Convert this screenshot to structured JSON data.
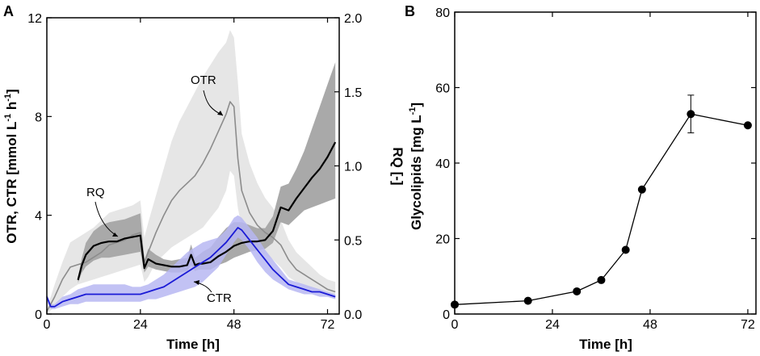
{
  "colors": {
    "otr_line": "#8c8c8c",
    "otr_band": "#e6e6e6",
    "rq_line": "#000000",
    "rq_band": "#a9a9a9",
    "ctr_line": "#1a1ad6",
    "ctr_band": "#b7b7f2",
    "glyco_marker": "#000000"
  },
  "chart_data": [
    {
      "panel": "A",
      "type": "line",
      "title": "",
      "xlabel": "Time [h]",
      "ylabel_left": "OTR, CTR [mmol L⁻¹ h⁻¹]",
      "ylabel_left_parts": {
        "base": "OTR, CTR [mmol L",
        "exp1": "-1",
        "mid": " h",
        "exp2": "-1",
        "end": "]"
      },
      "ylabel_right": "RQ [-]",
      "xlim": [
        0,
        75
      ],
      "ylim_left": [
        0,
        12
      ],
      "ylim_right": [
        0,
        2.0
      ],
      "xticks": [
        "0",
        "24",
        "48",
        "72"
      ],
      "yticks_left": [
        "0",
        "4",
        "8",
        "12"
      ],
      "yticks_right": [
        "0.0",
        "0.5",
        "1.0",
        "1.5",
        "2.0"
      ],
      "annotations": [
        "OTR",
        "RQ",
        "CTR"
      ],
      "series": [
        {
          "name": "OTR",
          "axis": "left",
          "x": [
            0,
            2,
            4,
            6,
            8,
            10,
            12,
            14,
            16,
            18,
            20,
            22,
            24,
            25,
            26,
            28,
            30,
            32,
            34,
            36,
            38,
            40,
            42,
            44,
            46,
            47,
            48,
            49,
            50,
            52,
            54,
            56,
            58,
            60,
            62,
            64,
            66,
            68,
            70,
            72,
            74
          ],
          "values": [
            0.1,
            0.7,
            1.4,
            1.9,
            2.0,
            2.1,
            2.3,
            2.5,
            2.8,
            2.9,
            3.0,
            3.2,
            3.3,
            2.1,
            2.5,
            3.3,
            4.0,
            4.6,
            5.0,
            5.3,
            5.6,
            6.1,
            6.7,
            7.4,
            8.1,
            8.6,
            8.4,
            6.3,
            5.0,
            4.1,
            3.6,
            3.3,
            3.1,
            2.8,
            2.2,
            1.8,
            1.6,
            1.4,
            1.2,
            1.0,
            0.9
          ],
          "band": [
            [
              0,
              0.2
            ],
            [
              0.3,
              1.2
            ],
            [
              0.7,
              2.1
            ],
            [
              1.0,
              2.9
            ],
            [
              1.2,
              3.1
            ],
            [
              1.3,
              3.3
            ],
            [
              1.4,
              3.5
            ],
            [
              1.5,
              3.8
            ],
            [
              1.6,
              4.1
            ],
            [
              1.7,
              4.2
            ],
            [
              1.8,
              4.3
            ],
            [
              1.9,
              4.4
            ],
            [
              2.0,
              4.6
            ],
            [
              1.3,
              3.1
            ],
            [
              1.5,
              3.7
            ],
            [
              2.1,
              4.8
            ],
            [
              2.4,
              5.9
            ],
            [
              2.7,
              7.0
            ],
            [
              2.9,
              7.8
            ],
            [
              3.1,
              8.4
            ],
            [
              3.3,
              9.0
            ],
            [
              3.5,
              9.6
            ],
            [
              3.9,
              10.1
            ],
            [
              4.3,
              10.6
            ],
            [
              5.0,
              11.0
            ],
            [
              5.8,
              11.5
            ],
            [
              5.6,
              11.2
            ],
            [
              4.3,
              9.4
            ],
            [
              3.5,
              7.3
            ],
            [
              2.9,
              6.1
            ],
            [
              2.6,
              5.3
            ],
            [
              2.4,
              4.7
            ],
            [
              2.2,
              4.3
            ],
            [
              1.9,
              3.8
            ],
            [
              1.5,
              3.0
            ],
            [
              1.3,
              2.5
            ],
            [
              1.1,
              2.2
            ],
            [
              1.0,
              1.9
            ],
            [
              0.9,
              1.6
            ],
            [
              0.7,
              1.4
            ],
            [
              0.6,
              1.3
            ]
          ]
        },
        {
          "name": "RQ",
          "axis": "right",
          "x": [
            8,
            9,
            10,
            12,
            14,
            16,
            18,
            20,
            22,
            24,
            25,
            26,
            28,
            30,
            32,
            34,
            36,
            37,
            38,
            39,
            40,
            42,
            44,
            46,
            48,
            50,
            52,
            54,
            56,
            58,
            60,
            62,
            64,
            66,
            68,
            70,
            72,
            74
          ],
          "values": [
            0.23,
            0.33,
            0.4,
            0.46,
            0.48,
            0.49,
            0.49,
            0.51,
            0.52,
            0.53,
            0.31,
            0.37,
            0.34,
            0.33,
            0.32,
            0.32,
            0.33,
            0.4,
            0.33,
            0.34,
            0.34,
            0.35,
            0.39,
            0.42,
            0.46,
            0.48,
            0.49,
            0.49,
            0.5,
            0.56,
            0.72,
            0.7,
            0.78,
            0.85,
            0.92,
            0.98,
            1.06,
            1.16
          ],
          "band": [
            [
              0.21,
              0.25
            ],
            [
              0.28,
              0.38
            ],
            [
              0.32,
              0.48
            ],
            [
              0.36,
              0.56
            ],
            [
              0.38,
              0.6
            ],
            [
              0.38,
              0.62
            ],
            [
              0.39,
              0.63
            ],
            [
              0.4,
              0.64
            ],
            [
              0.41,
              0.66
            ],
            [
              0.42,
              0.68
            ],
            [
              0.28,
              0.36
            ],
            [
              0.32,
              0.44
            ],
            [
              0.3,
              0.4
            ],
            [
              0.29,
              0.37
            ],
            [
              0.28,
              0.36
            ],
            [
              0.28,
              0.37
            ],
            [
              0.29,
              0.38
            ],
            [
              0.33,
              0.47
            ],
            [
              0.29,
              0.38
            ],
            [
              0.3,
              0.4
            ],
            [
              0.3,
              0.42
            ],
            [
              0.3,
              0.45
            ],
            [
              0.33,
              0.52
            ],
            [
              0.35,
              0.58
            ],
            [
              0.38,
              0.62
            ],
            [
              0.4,
              0.62
            ],
            [
              0.42,
              0.6
            ],
            [
              0.43,
              0.58
            ],
            [
              0.44,
              0.58
            ],
            [
              0.48,
              0.66
            ],
            [
              0.62,
              0.86
            ],
            [
              0.6,
              0.88
            ],
            [
              0.65,
              0.98
            ],
            [
              0.7,
              1.1
            ],
            [
              0.72,
              1.25
            ],
            [
              0.74,
              1.4
            ],
            [
              0.76,
              1.55
            ],
            [
              0.78,
              1.7
            ]
          ]
        },
        {
          "name": "CTR",
          "axis": "left",
          "x": [
            0,
            1,
            2,
            4,
            6,
            8,
            10,
            12,
            14,
            16,
            18,
            20,
            22,
            24,
            26,
            28,
            30,
            32,
            34,
            36,
            38,
            40,
            42,
            44,
            46,
            48,
            49,
            50,
            52,
            54,
            56,
            58,
            60,
            62,
            64,
            66,
            68,
            70,
            72,
            74
          ],
          "values": [
            0.7,
            0.3,
            0.3,
            0.5,
            0.6,
            0.7,
            0.8,
            0.8,
            0.8,
            0.8,
            0.8,
            0.8,
            0.8,
            0.8,
            0.9,
            1.0,
            1.1,
            1.3,
            1.5,
            1.7,
            1.9,
            2.1,
            2.3,
            2.6,
            2.9,
            3.3,
            3.5,
            3.4,
            3.0,
            2.6,
            2.2,
            1.8,
            1.5,
            1.2,
            1.1,
            1.0,
            0.9,
            0.9,
            0.8,
            0.7
          ],
          "band": [
            [
              0.5,
              0.8
            ],
            [
              0.2,
              0.4
            ],
            [
              0.2,
              0.4
            ],
            [
              0.3,
              0.7
            ],
            [
              0.4,
              0.8
            ],
            [
              0.4,
              1.0
            ],
            [
              0.5,
              1.1
            ],
            [
              0.5,
              1.2
            ],
            [
              0.5,
              1.2
            ],
            [
              0.5,
              1.2
            ],
            [
              0.5,
              1.2
            ],
            [
              0.5,
              1.2
            ],
            [
              0.5,
              1.1
            ],
            [
              0.5,
              1.1
            ],
            [
              0.6,
              1.2
            ],
            [
              0.6,
              1.4
            ],
            [
              0.7,
              1.6
            ],
            [
              0.8,
              1.9
            ],
            [
              0.9,
              2.2
            ],
            [
              1.0,
              2.5
            ],
            [
              1.1,
              2.7
            ],
            [
              1.3,
              2.9
            ],
            [
              1.6,
              3.0
            ],
            [
              1.9,
              3.1
            ],
            [
              2.4,
              3.4
            ],
            [
              2.9,
              3.9
            ],
            [
              3.1,
              4.0
            ],
            [
              3.0,
              3.9
            ],
            [
              2.6,
              3.5
            ],
            [
              2.1,
              3.1
            ],
            [
              1.7,
              2.6
            ],
            [
              1.4,
              2.2
            ],
            [
              1.2,
              1.8
            ],
            [
              1.0,
              1.4
            ],
            [
              0.9,
              1.3
            ],
            [
              0.8,
              1.2
            ],
            [
              0.8,
              1.1
            ],
            [
              0.7,
              1.0
            ],
            [
              0.7,
              0.9
            ],
            [
              0.6,
              0.8
            ]
          ]
        }
      ]
    },
    {
      "panel": "B",
      "type": "line",
      "title": "",
      "xlabel": "Time [h]",
      "ylabel": "Glycolipids [mg L⁻¹]",
      "ylabel_parts": {
        "base": "Glycolipids [mg L",
        "exp": "-1",
        "end": "]"
      },
      "xlim": [
        0,
        74
      ],
      "ylim": [
        0,
        80
      ],
      "xticks": [
        "0",
        "24",
        "48",
        "72"
      ],
      "yticks": [
        "0",
        "20",
        "40",
        "60",
        "80"
      ],
      "series": [
        {
          "name": "Glycolipids",
          "x": [
            0,
            18,
            30,
            36,
            42,
            46,
            58,
            72
          ],
          "values": [
            2.5,
            3.5,
            6.0,
            9.0,
            17.0,
            33.0,
            53.0,
            50.0
          ],
          "error": [
            0,
            0,
            0,
            0,
            0,
            0,
            5.0,
            0
          ]
        }
      ]
    }
  ]
}
